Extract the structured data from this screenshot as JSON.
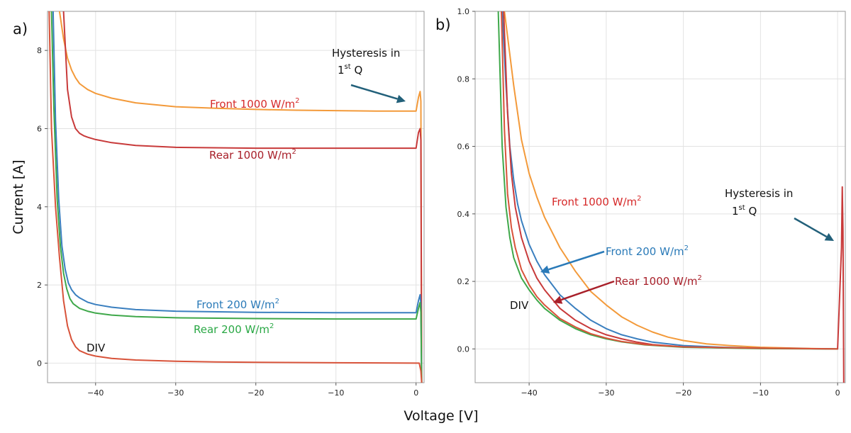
{
  "figure": {
    "xlabel": "Voltage [V]",
    "ylabel": "Current [A]"
  },
  "colors": {
    "front1000": "#f39a3a",
    "rear1000": "#c83a3a",
    "front200": "#3a7fbf",
    "rear200": "#3fa84a",
    "div": "#d8533a",
    "label_red": "#d62a2a",
    "label_darkred": "#a8202a",
    "label_blue": "#2a7ab8",
    "label_green": "#2aa845",
    "arrow_teal": "#22607a"
  },
  "chart_data": [
    {
      "type": "line",
      "panel_label": "a)",
      "xlim": [
        -46,
        1
      ],
      "ylim": [
        -0.5,
        9
      ],
      "xticks": [
        -40,
        -30,
        -20,
        -10,
        0
      ],
      "xtick_labels": [
        "−40",
        "−30",
        "−20",
        "−10",
        "0"
      ],
      "yticks": [
        0,
        2,
        4,
        6,
        8
      ],
      "ytick_labels": [
        "0",
        "2",
        "4",
        "6",
        "8"
      ],
      "grid": true,
      "series": [
        {
          "key": "front1000",
          "x": [
            -44.5,
            -44.0,
            -43.5,
            -43.0,
            -42.5,
            -42.0,
            -41.0,
            -40.0,
            -38.0,
            -35.0,
            -30.0,
            -25.0,
            -20.0,
            -15.0,
            -10.0,
            -5.0,
            -1.0,
            0.0,
            0.3,
            0.5,
            0.6,
            0.7
          ],
          "y": [
            9.0,
            8.3,
            7.8,
            7.5,
            7.3,
            7.15,
            7.0,
            6.9,
            6.78,
            6.66,
            6.56,
            6.52,
            6.49,
            6.47,
            6.46,
            6.45,
            6.45,
            6.45,
            6.8,
            6.95,
            6.7,
            -0.5
          ]
        },
        {
          "key": "rear1000",
          "x": [
            -44.0,
            -43.5,
            -43.0,
            -42.5,
            -42.0,
            -41.5,
            -41.0,
            -40.0,
            -38.0,
            -35.0,
            -30.0,
            -20.0,
            -10.0,
            -1.0,
            0.0,
            0.3,
            0.5,
            0.6,
            0.7
          ],
          "y": [
            9.0,
            7.0,
            6.3,
            6.0,
            5.88,
            5.82,
            5.78,
            5.72,
            5.64,
            5.57,
            5.52,
            5.5,
            5.5,
            5.5,
            5.5,
            5.9,
            6.0,
            5.7,
            -0.5
          ]
        },
        {
          "key": "front200",
          "x": [
            -45.3,
            -45.0,
            -44.6,
            -44.2,
            -43.8,
            -43.4,
            -43.0,
            -42.5,
            -42.0,
            -41.0,
            -40.0,
            -38.0,
            -35.0,
            -30.0,
            -20.0,
            -10.0,
            -1.0,
            0.0,
            0.3,
            0.5,
            0.6,
            0.7
          ],
          "y": [
            9.0,
            6.2,
            4.2,
            3.0,
            2.4,
            2.05,
            1.88,
            1.75,
            1.67,
            1.56,
            1.5,
            1.43,
            1.37,
            1.33,
            1.3,
            1.29,
            1.29,
            1.29,
            1.6,
            1.75,
            1.5,
            -0.5
          ]
        },
        {
          "key": "rear200",
          "x": [
            -45.5,
            -45.2,
            -44.8,
            -44.4,
            -44.0,
            -43.6,
            -43.2,
            -42.8,
            -42.0,
            -41.0,
            -40.0,
            -38.0,
            -35.0,
            -30.0,
            -20.0,
            -10.0,
            -1.0,
            0.0,
            0.3,
            0.5,
            0.6,
            0.7
          ],
          "y": [
            9.0,
            6.5,
            4.2,
            3.0,
            2.3,
            1.9,
            1.65,
            1.52,
            1.4,
            1.33,
            1.28,
            1.23,
            1.19,
            1.16,
            1.14,
            1.13,
            1.13,
            1.13,
            1.4,
            1.55,
            1.3,
            -0.5
          ]
        },
        {
          "key": "div",
          "x": [
            -45.8,
            -45.5,
            -45.0,
            -44.5,
            -44.0,
            -43.5,
            -43.0,
            -42.5,
            -42.0,
            -41.0,
            -40.0,
            -38.0,
            -35.0,
            -30.0,
            -25.0,
            -20.0,
            -10.0,
            0.0,
            0.4,
            0.6,
            0.7
          ],
          "y": [
            9.0,
            6.0,
            4.0,
            2.7,
            1.6,
            0.95,
            0.6,
            0.42,
            0.32,
            0.23,
            0.18,
            0.12,
            0.08,
            0.05,
            0.03,
            0.02,
            0.01,
            0.0,
            0.0,
            -0.2,
            -0.5
          ]
        }
      ],
      "annotations": [
        {
          "key": "hyst",
          "line1": "Hysteresis in",
          "line2_main": "1",
          "line2_sup": "st",
          "line2_end": " Q"
        },
        {
          "key": "front1000",
          "text": "Front 1000 W/m",
          "sup": "2"
        },
        {
          "key": "rear1000",
          "text": "Rear 1000 W/m",
          "sup": "2"
        },
        {
          "key": "front200",
          "text": "Front 200 W/m",
          "sup": "2"
        },
        {
          "key": "rear200",
          "text": "Rear 200 W/m",
          "sup": "2"
        },
        {
          "key": "div",
          "text": "DIV"
        }
      ]
    },
    {
      "type": "line",
      "panel_label": "b)",
      "xlim": [
        -47,
        1
      ],
      "ylim": [
        -0.1,
        1.0
      ],
      "xticks": [
        -40,
        -30,
        -20,
        -10,
        0
      ],
      "xtick_labels": [
        "−40",
        "−30",
        "−20",
        "−10",
        "0"
      ],
      "yticks": [
        0.0,
        0.2,
        0.4,
        0.6,
        0.8,
        1.0
      ],
      "ytick_labels": [
        "0.0",
        "0.2",
        "0.4",
        "0.6",
        "0.8",
        "1.0"
      ],
      "grid": true,
      "series": [
        {
          "key": "front1000",
          "x": [
            -43.2,
            -42.0,
            -41.0,
            -40.0,
            -39.0,
            -38.0,
            -36.0,
            -34.0,
            -32.0,
            -30.0,
            -28.0,
            -26.0,
            -24.0,
            -22.0,
            -20.0,
            -17.0,
            -14.0,
            -10.0,
            -5.0,
            0.0
          ],
          "y": [
            1.0,
            0.78,
            0.62,
            0.52,
            0.45,
            0.39,
            0.3,
            0.23,
            0.17,
            0.13,
            0.095,
            0.07,
            0.05,
            0.035,
            0.025,
            0.015,
            0.01,
            0.005,
            0.002,
            0.0
          ]
        },
        {
          "key": "front200",
          "x": [
            -43.5,
            -43.0,
            -42.5,
            -42.0,
            -41.5,
            -41.0,
            -40.0,
            -39.0,
            -38.0,
            -36.0,
            -34.0,
            -32.0,
            -30.0,
            -28.0,
            -26.0,
            -24.0,
            -20.0,
            -15.0,
            -10.0,
            0.0
          ],
          "y": [
            1.0,
            0.78,
            0.6,
            0.5,
            0.43,
            0.38,
            0.31,
            0.26,
            0.22,
            0.16,
            0.12,
            0.085,
            0.06,
            0.042,
            0.03,
            0.02,
            0.01,
            0.005,
            0.002,
            0.0
          ]
        },
        {
          "key": "rear1000",
          "x": [
            -43.3,
            -42.8,
            -42.3,
            -41.8,
            -41.0,
            -40.0,
            -39.0,
            -38.0,
            -36.0,
            -34.0,
            -32.0,
            -30.0,
            -28.0,
            -26.0,
            -24.0,
            -20.0,
            -15.0,
            -10.0,
            -5.0,
            0.0,
            0.5,
            0.6,
            0.7,
            0.8
          ],
          "y": [
            1.0,
            0.7,
            0.52,
            0.42,
            0.33,
            0.26,
            0.21,
            0.175,
            0.12,
            0.085,
            0.06,
            0.042,
            0.03,
            0.02,
            0.013,
            0.006,
            0.003,
            0.002,
            0.001,
            0.0,
            0.3,
            0.48,
            0.35,
            -0.1
          ]
        },
        {
          "key": "rear200",
          "x": [
            -44.0,
            -43.5,
            -43.0,
            -42.5,
            -42.0,
            -41.0,
            -40.0,
            -39.0,
            -38.0,
            -36.0,
            -34.0,
            -32.0,
            -30.0,
            -28.0,
            -25.0,
            -20.0,
            -10.0,
            0.0
          ],
          "y": [
            1.0,
            0.6,
            0.42,
            0.33,
            0.27,
            0.21,
            0.175,
            0.145,
            0.12,
            0.085,
            0.06,
            0.042,
            0.03,
            0.021,
            0.012,
            0.005,
            0.001,
            0.0
          ]
        },
        {
          "key": "div",
          "x": [
            -43.6,
            -43.2,
            -42.8,
            -42.3,
            -41.8,
            -41.0,
            -40.0,
            -39.0,
            -38.0,
            -36.0,
            -34.0,
            -32.0,
            -30.0,
            -28.0,
            -25.0,
            -20.0,
            -10.0,
            0.0
          ],
          "y": [
            1.0,
            0.65,
            0.46,
            0.36,
            0.3,
            0.235,
            0.19,
            0.155,
            0.13,
            0.09,
            0.065,
            0.045,
            0.032,
            0.022,
            0.013,
            0.006,
            0.002,
            0.0
          ]
        }
      ],
      "annotations": [
        {
          "key": "hyst",
          "line1": "Hysteresis in",
          "line2_main": "1",
          "line2_sup": "st",
          "line2_end": " Q"
        },
        {
          "key": "front1000",
          "text": "Front 1000 W/m",
          "sup": "2"
        },
        {
          "key": "front200",
          "text": "Front 200 W/m",
          "sup": "2"
        },
        {
          "key": "rear1000",
          "text": "Rear 1000 W/m",
          "sup": "2"
        },
        {
          "key": "div",
          "text": "DIV"
        }
      ]
    }
  ]
}
